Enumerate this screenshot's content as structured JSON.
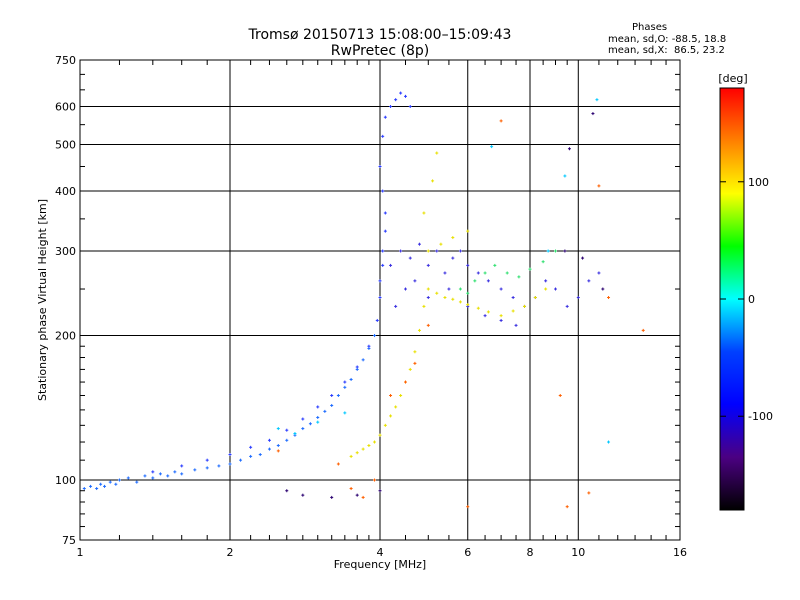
{
  "header": {
    "title_line1": "Tromsø 20150713 15:08:00–15:09:43",
    "title_line2": "RwPretec (8p)",
    "info_title": "Phases",
    "info_o": "mean, sd,O: -88.5, 18.8",
    "info_x": "mean, sd,X:  86.5, 23.2"
  },
  "chart_data": {
    "type": "scatter",
    "xlabel": "Frequency [MHz]",
    "ylabel": "Stationary phase Virtual Height [km]",
    "x_scale": "log",
    "y_scale": "log",
    "xlim": [
      1,
      16
    ],
    "ylim": [
      75,
      750
    ],
    "x_ticks": [
      1,
      2,
      4,
      6,
      8,
      10,
      16
    ],
    "x_tick_labels": [
      "1",
      "2",
      "4",
      "6",
      "8",
      "10",
      "16"
    ],
    "x_minor_ticks": [
      1.2,
      1.4,
      1.6,
      1.8,
      2.2,
      2.4,
      2.6,
      2.8,
      3,
      3.2,
      3.4,
      3.6,
      3.8,
      4.5,
      5,
      5.5,
      6.5,
      7,
      7.5,
      8.5,
      9,
      9.5,
      11,
      12,
      13,
      14,
      15
    ],
    "y_ticks": [
      75,
      100,
      200,
      300,
      400,
      500,
      600,
      750
    ],
    "y_tick_labels": [
      "75",
      "100",
      "200",
      "300",
      "400",
      "500",
      "600",
      "750"
    ],
    "grid": true,
    "colorbar": {
      "label": "[deg]",
      "range": [
        -180,
        180
      ],
      "ticks": [
        100,
        0,
        -100
      ],
      "tick_labels": [
        "100",
        "0",
        "-100"
      ],
      "stops": [
        "#000000",
        "#4b0082",
        "#0000ff",
        "#0040ff",
        "#00ffff",
        "#00ff00",
        "#ffff00",
        "#ff8000",
        "#ff0000"
      ]
    },
    "series": [
      {
        "label_key": "o_mode_low",
        "color": "#1e6cff",
        "points": [
          [
            1.02,
            96
          ],
          [
            1.05,
            97
          ],
          [
            1.08,
            96
          ],
          [
            1.1,
            98
          ],
          [
            1.12,
            97
          ],
          [
            1.15,
            99
          ],
          [
            1.18,
            98
          ],
          [
            1.2,
            100
          ],
          [
            1.25,
            101
          ],
          [
            1.3,
            99
          ],
          [
            1.35,
            102
          ],
          [
            1.4,
            101
          ],
          [
            1.45,
            103
          ],
          [
            1.5,
            102
          ],
          [
            1.55,
            104
          ],
          [
            1.6,
            103
          ],
          [
            1.7,
            105
          ],
          [
            1.8,
            106
          ],
          [
            1.9,
            107
          ],
          [
            2.0,
            108
          ],
          [
            2.1,
            110
          ],
          [
            2.2,
            112
          ],
          [
            2.3,
            113
          ],
          [
            2.4,
            116
          ],
          [
            2.5,
            118
          ],
          [
            2.6,
            121
          ],
          [
            2.7,
            124
          ],
          [
            2.8,
            128
          ],
          [
            2.9,
            131
          ],
          [
            3.0,
            135
          ],
          [
            3.1,
            139
          ],
          [
            3.2,
            143
          ],
          [
            3.3,
            150
          ],
          [
            3.4,
            156
          ],
          [
            3.5,
            162
          ],
          [
            3.6,
            170
          ],
          [
            3.7,
            178
          ],
          [
            3.8,
            188
          ],
          [
            3.9,
            200
          ]
        ]
      },
      {
        "label_key": "o_mode_high",
        "color": "#2a3cff",
        "points": [
          [
            1.4,
            104
          ],
          [
            1.6,
            107
          ],
          [
            1.8,
            110
          ],
          [
            2.0,
            113
          ],
          [
            2.2,
            117
          ],
          [
            2.4,
            121
          ],
          [
            2.6,
            127
          ],
          [
            2.8,
            134
          ],
          [
            3.0,
            142
          ],
          [
            3.2,
            150
          ],
          [
            3.4,
            160
          ],
          [
            3.6,
            172
          ],
          [
            3.8,
            190
          ],
          [
            3.95,
            215
          ],
          [
            4.0,
            240
          ],
          [
            4.0,
            260
          ],
          [
            4.05,
            280
          ],
          [
            4.05,
            300
          ],
          [
            4.1,
            330
          ],
          [
            4.1,
            360
          ],
          [
            4.05,
            400
          ],
          [
            4.0,
            450
          ],
          [
            4.05,
            520
          ],
          [
            4.1,
            570
          ],
          [
            4.2,
            600
          ],
          [
            4.3,
            620
          ],
          [
            4.4,
            640
          ],
          [
            4.5,
            630
          ],
          [
            4.6,
            600
          ]
        ]
      },
      {
        "label_key": "o_mode_spread",
        "color": "#3a30e0",
        "points": [
          [
            4.2,
            280
          ],
          [
            4.4,
            300
          ],
          [
            4.6,
            290
          ],
          [
            4.8,
            310
          ],
          [
            5.0,
            280
          ],
          [
            5.2,
            300
          ],
          [
            5.4,
            270
          ],
          [
            5.6,
            290
          ],
          [
            5.8,
            300
          ],
          [
            6.0,
            280
          ],
          [
            6.3,
            270
          ],
          [
            6.6,
            260
          ],
          [
            7.0,
            250
          ],
          [
            7.4,
            240
          ],
          [
            7.8,
            230
          ],
          [
            8.2,
            240
          ],
          [
            8.6,
            260
          ],
          [
            9.0,
            250
          ],
          [
            9.5,
            230
          ],
          [
            10.0,
            240
          ],
          [
            10.5,
            260
          ],
          [
            11.0,
            270
          ],
          [
            4.3,
            230
          ],
          [
            4.5,
            250
          ],
          [
            4.7,
            260
          ],
          [
            5.0,
            240
          ],
          [
            5.5,
            250
          ],
          [
            6.0,
            230
          ],
          [
            6.5,
            220
          ],
          [
            7.0,
            215
          ],
          [
            7.5,
            210
          ]
        ]
      },
      {
        "label_key": "x_mode",
        "color": "#e8e000",
        "points": [
          [
            3.5,
            112
          ],
          [
            3.6,
            114
          ],
          [
            3.7,
            116
          ],
          [
            3.8,
            118
          ],
          [
            3.9,
            120
          ],
          [
            4.0,
            124
          ],
          [
            4.1,
            130
          ],
          [
            4.2,
            136
          ],
          [
            4.3,
            142
          ],
          [
            4.4,
            150
          ],
          [
            4.5,
            160
          ],
          [
            4.6,
            170
          ],
          [
            4.7,
            185
          ],
          [
            4.8,
            205
          ],
          [
            4.9,
            230
          ],
          [
            5.0,
            250
          ],
          [
            5.2,
            245
          ],
          [
            5.4,
            240
          ],
          [
            5.6,
            238
          ],
          [
            5.8,
            235
          ],
          [
            6.0,
            232
          ],
          [
            6.3,
            228
          ],
          [
            6.6,
            224
          ],
          [
            7.0,
            220
          ],
          [
            7.4,
            225
          ],
          [
            7.8,
            230
          ],
          [
            8.2,
            240
          ],
          [
            8.6,
            250
          ],
          [
            5.0,
            300
          ],
          [
            5.3,
            310
          ],
          [
            5.6,
            320
          ],
          [
            6.0,
            330
          ],
          [
            4.9,
            360
          ],
          [
            5.1,
            420
          ],
          [
            5.2,
            480
          ]
        ]
      },
      {
        "label_key": "x_mode_green",
        "color": "#30e070",
        "points": [
          [
            6.2,
            260
          ],
          [
            6.5,
            270
          ],
          [
            6.8,
            280
          ],
          [
            7.2,
            270
          ],
          [
            7.6,
            265
          ],
          [
            8.0,
            275
          ],
          [
            8.5,
            285
          ],
          [
            9.0,
            300
          ],
          [
            5.8,
            250
          ],
          [
            6.0,
            245
          ]
        ]
      },
      {
        "label_key": "scattered_other",
        "color": "#ff6000",
        "points": [
          [
            3.3,
            108
          ],
          [
            3.5,
            96
          ],
          [
            3.7,
            92
          ],
          [
            4.2,
            150
          ],
          [
            4.5,
            160
          ],
          [
            4.7,
            175
          ],
          [
            5.0,
            210
          ],
          [
            6.0,
            88
          ],
          [
            7.0,
            560
          ],
          [
            9.5,
            88
          ],
          [
            10.5,
            94
          ],
          [
            11.0,
            410
          ],
          [
            13.5,
            205
          ],
          [
            9.2,
            150
          ],
          [
            11.5,
            240
          ],
          [
            2.5,
            115
          ],
          [
            3.9,
            100
          ]
        ]
      },
      {
        "label_key": "scattered_deep",
        "color": "#2a0070",
        "points": [
          [
            2.6,
            95
          ],
          [
            2.8,
            93
          ],
          [
            3.2,
            92
          ],
          [
            3.6,
            93
          ],
          [
            4.0,
            95
          ],
          [
            9.6,
            490
          ],
          [
            10.7,
            580
          ],
          [
            9.4,
            300
          ],
          [
            10.2,
            290
          ],
          [
            11.2,
            250
          ]
        ]
      },
      {
        "label_key": "scattered_cyan",
        "color": "#00c8ff",
        "points": [
          [
            2.5,
            128
          ],
          [
            2.7,
            125
          ],
          [
            3.0,
            132
          ],
          [
            3.4,
            138
          ],
          [
            6.7,
            495
          ],
          [
            9.4,
            430
          ],
          [
            8.7,
            300
          ],
          [
            11.5,
            120
          ],
          [
            10.9,
            620
          ]
        ]
      }
    ]
  }
}
